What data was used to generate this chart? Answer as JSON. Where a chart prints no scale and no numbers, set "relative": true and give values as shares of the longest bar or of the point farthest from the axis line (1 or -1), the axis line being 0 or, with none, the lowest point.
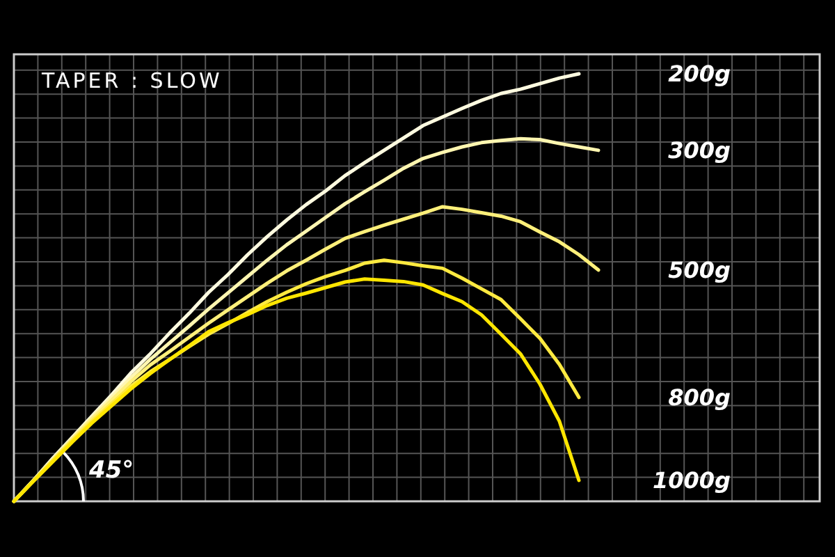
{
  "chart_data": {
    "type": "line",
    "title": "TAPER : SLOW",
    "relative": true,
    "grid": true,
    "annotations": [
      "45°"
    ],
    "categories": [
      null,
      null,
      null,
      null,
      null,
      null,
      null,
      null,
      null,
      null,
      null,
      null,
      null,
      null,
      null,
      null,
      null,
      null,
      null,
      null,
      null,
      null,
      null,
      null,
      null,
      null,
      null,
      null,
      null,
      null,
      null
    ],
    "series": [
      {
        "name": "200g",
        "color": "#fffbe0",
        "values": [
          0,
          0.049,
          0.101,
          0.15,
          0.199,
          0.248,
          0.3,
          0.345,
          0.394,
          0.44,
          0.489,
          0.531,
          0.577,
          0.619,
          0.658,
          0.694,
          0.726,
          0.762,
          0.792,
          0.821,
          0.85,
          0.879,
          0.899,
          0.919,
          0.938,
          0.954,
          0.964,
          0.977,
          0.99,
          1,
          null
        ]
      },
      {
        "name": "300g",
        "color": "#fff6b0",
        "values": [
          0,
          0.049,
          0.098,
          0.148,
          0.196,
          0.243,
          0.289,
          0.332,
          0.371,
          0.41,
          0.45,
          0.488,
          0.526,
          0.564,
          0.6,
          0.632,
          0.664,
          0.696,
          0.724,
          0.751,
          0.779,
          0.802,
          0.816,
          0.829,
          0.839,
          0.844,
          0.848,
          0.846,
          0.837,
          0.829,
          0.821
        ]
      },
      {
        "name": "500g",
        "color": "#fff07a",
        "values": [
          0,
          0.048,
          0.097,
          0.145,
          0.192,
          0.236,
          0.28,
          0.319,
          0.351,
          0.384,
          0.417,
          0.448,
          0.479,
          0.51,
          0.539,
          0.564,
          0.59,
          0.615,
          0.631,
          0.646,
          0.66,
          0.674,
          0.689,
          0.683,
          0.675,
          0.667,
          0.654,
          0.63,
          0.607,
          0.577,
          0.541
        ]
      },
      {
        "name": "800g",
        "color": "#ffea40",
        "values": [
          0,
          0.048,
          0.095,
          0.142,
          0.187,
          0.228,
          0.269,
          0.303,
          0.332,
          0.362,
          0.391,
          0.416,
          0.442,
          0.467,
          0.489,
          0.509,
          0.526,
          0.54,
          0.557,
          0.564,
          0.558,
          0.551,
          0.545,
          0.522,
          0.497,
          0.472,
          0.427,
          0.381,
          0.32,
          0.243,
          null
        ]
      },
      {
        "name": "1000g",
        "color": "#ffe600",
        "values": [
          0,
          0.047,
          0.093,
          0.139,
          0.183,
          0.223,
          0.263,
          0.299,
          0.332,
          0.364,
          0.397,
          0.418,
          0.437,
          0.458,
          0.475,
          0.487,
          0.5,
          0.513,
          0.52,
          0.517,
          0.514,
          0.506,
          0.486,
          0.467,
          0.436,
          0.391,
          0.345,
          0.274,
          0.187,
          0.049,
          null
        ]
      }
    ]
  }
}
